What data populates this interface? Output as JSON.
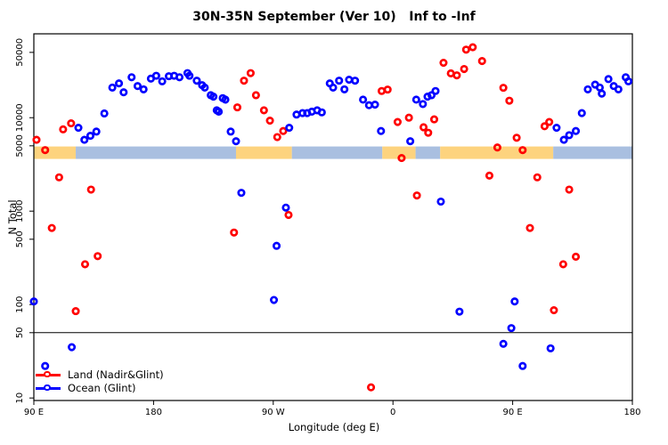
{
  "figure": {
    "background": "#ffffff"
  },
  "chart_data": {
    "type": "scatter",
    "title": "30N-35N September (Ver 10)   Inf to -Inf",
    "xlabel": "Longitude (deg E)",
    "ylabel": "N Total",
    "x_axis": {
      "range": [
        90,
        540
      ],
      "ticks": [
        {
          "value": 90,
          "label": "90 E"
        },
        {
          "value": 180,
          "label": "180"
        },
        {
          "value": 270,
          "label": "90 W"
        },
        {
          "value": 360,
          "label": "0"
        },
        {
          "value": 450,
          "label": "90 E"
        },
        {
          "value": 540,
          "label": "180"
        }
      ]
    },
    "y_axis": {
      "scale": "log",
      "range": [
        9.4,
        79000
      ],
      "ticks": [
        {
          "value": 10,
          "label": "10"
        },
        {
          "value": 50,
          "label": "50"
        },
        {
          "value": 100,
          "label": "100"
        },
        {
          "value": 500,
          "label": "500"
        },
        {
          "value": 1000,
          "label": "1000"
        },
        {
          "value": 5000,
          "label": "5000"
        },
        {
          "value": 10000,
          "label": "10000"
        },
        {
          "value": 50000,
          "label": "50000"
        }
      ]
    },
    "grid": false,
    "reference_line": {
      "y": 50,
      "color": "#000000"
    },
    "surface_band": {
      "value_range": [
        3620,
        4920
      ],
      "colors": {
        "land": "#fdd37e",
        "ocean": "#a9bfe0"
      },
      "segments": [
        {
          "from": 90,
          "to": 121.5,
          "surface": "land"
        },
        {
          "from": 121.5,
          "to": 242,
          "surface": "ocean"
        },
        {
          "from": 242,
          "to": 284,
          "surface": "land"
        },
        {
          "from": 284,
          "to": 352,
          "surface": "ocean"
        },
        {
          "from": 352,
          "to": 377,
          "surface": "land"
        },
        {
          "from": 377,
          "to": 395.5,
          "surface": "ocean"
        },
        {
          "from": 395.5,
          "to": 480.5,
          "surface": "land"
        },
        {
          "from": 480.5,
          "to": 540,
          "surface": "ocean"
        }
      ]
    },
    "series": [
      {
        "name": "Land (Nadir&Glint)",
        "color": "#ff0000",
        "marker": "open-circle",
        "points": [
          [
            92,
            5800
          ],
          [
            98.5,
            4500
          ],
          [
            112,
            7500
          ],
          [
            118,
            8700
          ],
          [
            103.5,
            660
          ],
          [
            109,
            2300
          ],
          [
            121.5,
            85
          ],
          [
            128.5,
            270
          ],
          [
            133,
            1700
          ],
          [
            138,
            330
          ],
          [
            240.5,
            590
          ],
          [
            243,
            12900
          ],
          [
            248,
            24900
          ],
          [
            253,
            30000
          ],
          [
            257,
            17400
          ],
          [
            263,
            12000
          ],
          [
            267.5,
            9300
          ],
          [
            273,
            6200
          ],
          [
            277.5,
            7200
          ],
          [
            281.5,
            910
          ],
          [
            343.5,
            13
          ],
          [
            351.5,
            19300
          ],
          [
            356,
            20000
          ],
          [
            363.5,
            9000
          ],
          [
            366.5,
            3700
          ],
          [
            372,
            10000
          ],
          [
            378,
            1470
          ],
          [
            383,
            7900
          ],
          [
            386.5,
            6900
          ],
          [
            391,
            9600
          ],
          [
            398,
            38700
          ],
          [
            403.5,
            29800
          ],
          [
            408,
            28400
          ],
          [
            413.5,
            33200
          ],
          [
            415,
            53500
          ],
          [
            420,
            56800
          ],
          [
            427,
            40400
          ],
          [
            432.5,
            2400
          ],
          [
            438.5,
            4800
          ],
          [
            443,
            20900
          ],
          [
            447.5,
            15200
          ],
          [
            453,
            6100
          ],
          [
            457.5,
            4500
          ],
          [
            463,
            660
          ],
          [
            468.5,
            2300
          ],
          [
            474,
            8100
          ],
          [
            477.5,
            9000
          ],
          [
            481,
            87
          ],
          [
            488,
            270
          ],
          [
            492.5,
            1700
          ],
          [
            497.5,
            325
          ]
        ]
      },
      {
        "name": "Ocean (Glint)",
        "color": "#0000ff",
        "marker": "open-circle",
        "points": [
          [
            90,
            108
          ],
          [
            98.5,
            22
          ],
          [
            118.5,
            35
          ],
          [
            123.5,
            7800
          ],
          [
            128,
            5800
          ],
          [
            132.5,
            6400
          ],
          [
            137,
            7100
          ],
          [
            143,
            11100
          ],
          [
            149,
            21000
          ],
          [
            154,
            23300
          ],
          [
            157.5,
            18700
          ],
          [
            163.5,
            27100
          ],
          [
            168,
            21800
          ],
          [
            172.5,
            20100
          ],
          [
            178,
            26200
          ],
          [
            182,
            28100
          ],
          [
            186.5,
            24500
          ],
          [
            191.5,
            27800
          ],
          [
            195.5,
            28100
          ],
          [
            199.5,
            27100
          ],
          [
            205.5,
            30000
          ],
          [
            207,
            28100
          ],
          [
            212.5,
            24900
          ],
          [
            216.5,
            22300
          ],
          [
            218.5,
            21000
          ],
          [
            223,
            17400
          ],
          [
            225,
            16800
          ],
          [
            227.5,
            12000
          ],
          [
            229,
            11600
          ],
          [
            232,
            16200
          ],
          [
            234,
            15600
          ],
          [
            238,
            7100
          ],
          [
            242,
            5600
          ],
          [
            246,
            1570
          ],
          [
            270.5,
            112
          ],
          [
            272.5,
            425
          ],
          [
            279.5,
            1090
          ],
          [
            282,
            7800
          ],
          [
            287.5,
            10800
          ],
          [
            292,
            11200
          ],
          [
            295.5,
            11200
          ],
          [
            299,
            11600
          ],
          [
            303,
            12000
          ],
          [
            306.5,
            11400
          ],
          [
            312.5,
            23300
          ],
          [
            315,
            21000
          ],
          [
            319.5,
            24900
          ],
          [
            323.5,
            20100
          ],
          [
            327,
            25500
          ],
          [
            331.5,
            24900
          ],
          [
            337.5,
            15600
          ],
          [
            342,
            13600
          ],
          [
            346.5,
            13800
          ],
          [
            351,
            7200
          ],
          [
            373,
            5600
          ],
          [
            377.5,
            15600
          ],
          [
            382.5,
            14000
          ],
          [
            386,
            16800
          ],
          [
            389,
            17400
          ],
          [
            392,
            19300
          ],
          [
            396,
            1265
          ],
          [
            410,
            84
          ],
          [
            443,
            38
          ],
          [
            449,
            56
          ],
          [
            451.5,
            108
          ],
          [
            457.5,
            22
          ],
          [
            478.5,
            34
          ],
          [
            483,
            7800
          ],
          [
            488.5,
            5800
          ],
          [
            492.5,
            6500
          ],
          [
            497.5,
            7200
          ],
          [
            502,
            11200
          ],
          [
            506.5,
            20100
          ],
          [
            512,
            22600
          ],
          [
            515.5,
            21000
          ],
          [
            517,
            18100
          ],
          [
            522,
            25900
          ],
          [
            526,
            21800
          ],
          [
            529.5,
            20100
          ],
          [
            535,
            27100
          ],
          [
            537,
            24500
          ]
        ]
      }
    ],
    "legend": {
      "position": "bottom-left",
      "items": [
        {
          "label": "Land (Nadir&Glint)",
          "color": "#ff0000"
        },
        {
          "label": "Ocean (Glint)",
          "color": "#0000ff"
        }
      ]
    }
  }
}
